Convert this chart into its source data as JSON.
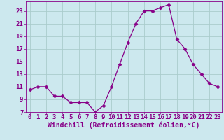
{
  "x": [
    0,
    1,
    2,
    3,
    4,
    5,
    6,
    7,
    8,
    9,
    10,
    11,
    12,
    13,
    14,
    15,
    16,
    17,
    18,
    19,
    20,
    21,
    22,
    23
  ],
  "y": [
    10.5,
    11,
    11,
    9.5,
    9.5,
    8.5,
    8.5,
    8.5,
    7,
    8,
    11,
    14.5,
    18,
    21,
    23,
    23,
    23.5,
    24,
    18.5,
    17,
    14.5,
    13,
    11.5,
    11
  ],
  "line_color": "#880088",
  "marker": "D",
  "marker_size": 2.5,
  "bg_color": "#cce8ee",
  "grid_color": "#aacccc",
  "xlabel": "Windchill (Refroidissement éolien,°C)",
  "xlim": [
    -0.5,
    23.5
  ],
  "ylim": [
    7,
    24.5
  ],
  "yticks": [
    7,
    9,
    11,
    13,
    15,
    17,
    19,
    21,
    23
  ],
  "xticks": [
    0,
    1,
    2,
    3,
    4,
    5,
    6,
    7,
    8,
    9,
    10,
    11,
    12,
    13,
    14,
    15,
    16,
    17,
    18,
    19,
    20,
    21,
    22,
    23
  ],
  "tick_color": "#880088",
  "label_fontsize": 6.5,
  "xlabel_fontsize": 7
}
